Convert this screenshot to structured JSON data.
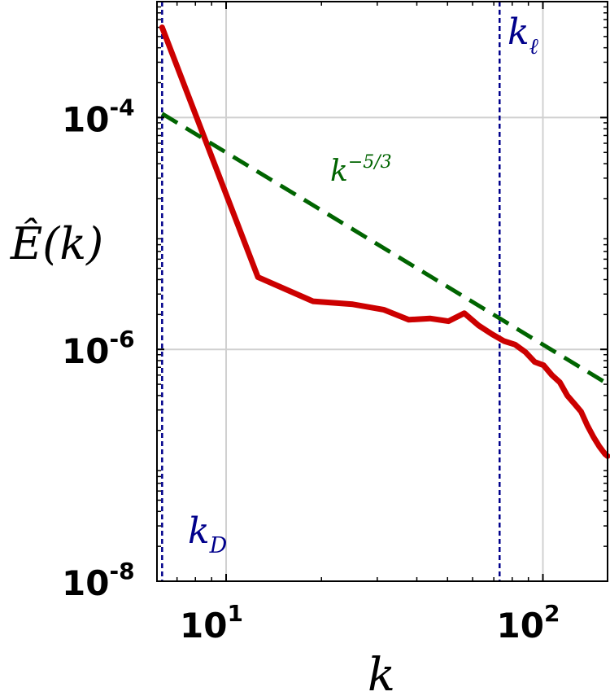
{
  "chart_data": {
    "type": "line",
    "xscale": "log",
    "yscale": "log",
    "xlim": [
      6.05,
      160
    ],
    "ylim": [
      1e-08,
      0.001
    ],
    "grid": true,
    "xlabel": "k",
    "ylabel": "Ê(k)",
    "x_ticks": [
      {
        "value": 10,
        "base": "10",
        "exp": "1"
      },
      {
        "value": 100,
        "base": "10",
        "exp": "2"
      }
    ],
    "y_ticks": [
      {
        "value": 1e-08,
        "base": "10",
        "exp": "-8"
      },
      {
        "value": 1e-06,
        "base": "10",
        "exp": "-6"
      },
      {
        "value": 0.0001,
        "base": "10",
        "exp": "-4"
      }
    ],
    "series": [
      {
        "color": "#cc0000",
        "x": [
          6.28,
          12.6,
          18.8,
          25.1,
          31.4,
          37.7,
          44.0,
          50.3,
          56.5,
          62.8,
          69.1,
          75.4,
          81.7,
          88.0,
          94.2,
          100.5,
          106.8,
          113.1,
          119.4,
          125.7,
          132.0,
          138.2,
          144.5,
          150.8,
          157.1,
          160
        ],
        "y": [
          0.0006,
          4.2e-06,
          2.6e-06,
          2.45e-06,
          2.2e-06,
          1.8e-06,
          1.85e-06,
          1.75e-06,
          2.05e-06,
          1.6e-06,
          1.35e-06,
          1.18e-06,
          1.1e-06,
          9.5e-07,
          7.8e-07,
          7.3e-07,
          6e-07,
          5.2e-07,
          4e-07,
          3.4e-07,
          2.9e-07,
          2.2e-07,
          1.75e-07,
          1.45e-07,
          1.25e-07,
          1.2e-07
        ]
      },
      {
        "color": "#006400",
        "dash": "dashed",
        "x": [
          6.28,
          160
        ],
        "y": [
          0.000108,
          5.05e-07
        ]
      }
    ],
    "vlines": [
      {
        "x": 6.28,
        "color": "#00008b",
        "dash": "dashed"
      },
      {
        "x": 73,
        "color": "#00008b",
        "dash": "dashed"
      }
    ],
    "annotations": [
      {
        "id": "kD",
        "base": "k",
        "sub": "D",
        "color": "#00008b"
      },
      {
        "id": "kl",
        "base": "k",
        "sub": "ℓ",
        "color": "#00008b"
      },
      {
        "id": "slope",
        "base": "k",
        "sup": "−5/3",
        "color": "#006400"
      }
    ]
  }
}
